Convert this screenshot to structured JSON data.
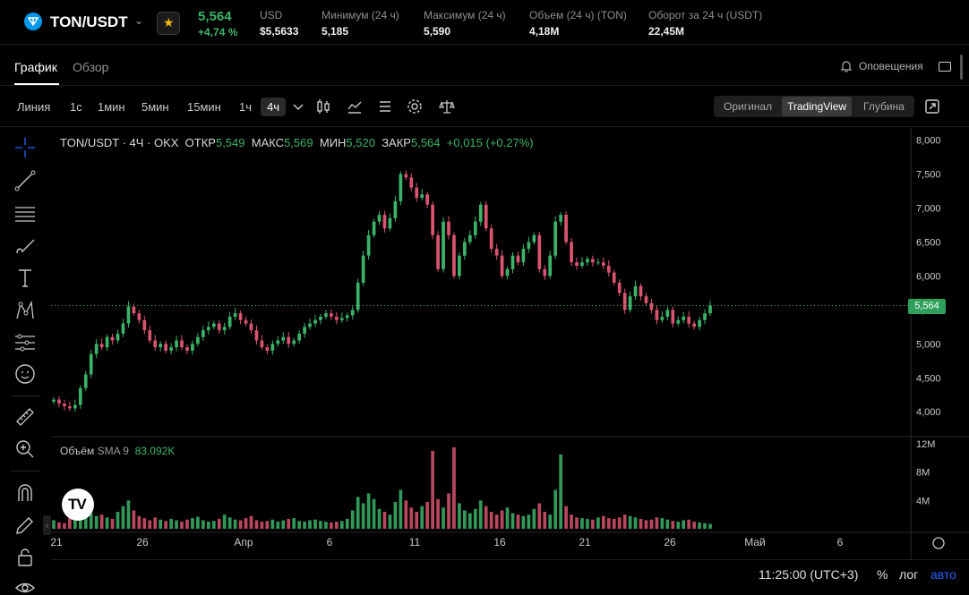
{
  "ticker": {
    "pair": "TON/USDT",
    "price": "5,564",
    "change": "+4,74 %",
    "stats": [
      {
        "label": "USD",
        "value": "$5,5633"
      },
      {
        "label": "Минимум (24 ч)",
        "value": "5,185"
      },
      {
        "label": "Максимум (24 ч)",
        "value": "5,590"
      },
      {
        "label": "Объем (24 ч) (TON)",
        "value": "4,18M"
      },
      {
        "label": "Оборот за 24 ч (USDT)",
        "value": "22,45M"
      }
    ]
  },
  "tabs": {
    "chart": "График",
    "overview": "Обзор",
    "alerts": "Оповещения"
  },
  "toolbar": {
    "timeframes": [
      "Линия",
      "1с",
      "1мин",
      "5мин",
      "15мин",
      "1ч",
      "4ч"
    ],
    "active_timeframe": "4ч",
    "views": [
      "Оригинал",
      "TradingView",
      "Глубина"
    ],
    "active_view": "TradingView"
  },
  "legend": {
    "title": "TON/USDT · 4Ч · OKX",
    "open_label": "ОТКР",
    "open": "5,549",
    "high_label": "МАКС",
    "high": "5,569",
    "low_label": "МИН",
    "low": "5,520",
    "close_label": "ЗАКР",
    "close": "5,564",
    "change": "+0,015 (+0.27%)"
  },
  "volume_legend": {
    "label": "Объём",
    "indicator": "SMA 9",
    "value": "83.092K"
  },
  "current_price_tag": "5,564",
  "bottom": {
    "time": "11:25:00 (UTC+3)",
    "percent": "%",
    "log": "лог",
    "auto": "авто"
  },
  "colors": {
    "up": "#3bb46a",
    "down": "#d9546f",
    "accent": "#2962ff",
    "background": "#000000"
  },
  "chart_data": {
    "type": "candlestick",
    "title": "TON/USDT · 4Ч · OKX",
    "y_ticks": [
      "8,000",
      "7,500",
      "7,000",
      "6,500",
      "6,000",
      "5,500",
      "5,000",
      "4,500",
      "4,000"
    ],
    "ylim": [
      3.7,
      8.1
    ],
    "x_ticks": [
      "21",
      "26",
      "Апр",
      "6",
      "11",
      "16",
      "21",
      "26",
      "Май",
      "6"
    ],
    "volume_ticks": [
      "12M",
      "8M",
      "4M"
    ],
    "volume_ylim": [
      0,
      12
    ],
    "series_close": [
      4.18,
      4.12,
      4.08,
      4.05,
      4.1,
      4.35,
      4.55,
      4.85,
      5.0,
      4.95,
      5.1,
      5.05,
      5.15,
      5.3,
      5.55,
      5.45,
      5.35,
      5.2,
      5.05,
      4.95,
      5.0,
      4.9,
      4.95,
      5.05,
      4.95,
      4.9,
      5.0,
      5.1,
      5.2,
      5.25,
      5.3,
      5.2,
      5.25,
      5.4,
      5.45,
      5.35,
      5.3,
      5.2,
      5.05,
      4.95,
      4.9,
      5.0,
      5.05,
      5.1,
      5.0,
      5.05,
      5.15,
      5.25,
      5.3,
      5.35,
      5.4,
      5.45,
      5.4,
      5.35,
      5.38,
      5.42,
      5.5,
      5.9,
      6.3,
      6.6,
      6.8,
      6.9,
      6.7,
      6.85,
      7.1,
      7.5,
      7.45,
      7.3,
      7.15,
      7.2,
      7.05,
      6.6,
      6.1,
      6.8,
      6.6,
      6.0,
      6.3,
      6.5,
      6.6,
      6.8,
      7.05,
      6.7,
      6.4,
      6.3,
      6.0,
      6.1,
      6.3,
      6.2,
      6.4,
      6.5,
      6.6,
      6.1,
      6.0,
      6.3,
      6.8,
      6.9,
      6.5,
      6.2,
      6.15,
      6.2,
      6.25,
      6.2,
      6.2,
      6.15,
      6.05,
      5.9,
      5.75,
      5.5,
      5.7,
      5.85,
      5.7,
      5.6,
      5.5,
      5.35,
      5.4,
      5.5,
      5.3,
      5.35,
      5.4,
      5.3,
      5.25,
      5.35,
      5.45,
      5.564
    ],
    "series_volume": [
      1.2,
      0.9,
      0.8,
      1.5,
      2.0,
      2.5,
      3.0,
      2.2,
      1.8,
      2.0,
      1.6,
      1.4,
      2.4,
      3.2,
      4.0,
      2.6,
      1.8,
      1.5,
      1.2,
      1.6,
      1.3,
      1.1,
      1.4,
      1.2,
      1.0,
      1.3,
      1.5,
      1.7,
      1.2,
      1.0,
      1.1,
      1.4,
      2.0,
      1.6,
      1.3,
      1.2,
      1.5,
      1.8,
      1.2,
      1.0,
      1.1,
      1.3,
      1.0,
      1.2,
      1.4,
      1.5,
      1.1,
      1.0,
      1.2,
      1.3,
      1.1,
      1.0,
      0.9,
      1.0,
      1.1,
      1.4,
      2.6,
      4.5,
      3.6,
      5.0,
      4.2,
      2.8,
      2.4,
      2.0,
      3.8,
      5.5,
      4.0,
      3.0,
      2.4,
      3.2,
      3.8,
      11.0,
      4.2,
      3.0,
      5.0,
      11.5,
      3.6,
      2.6,
      2.2,
      2.8,
      4.0,
      3.2,
      2.4,
      2.0,
      2.6,
      3.0,
      2.2,
      2.0,
      1.8,
      2.0,
      2.8,
      3.6,
      2.4,
      2.0,
      5.5,
      10.5,
      3.2,
      2.0,
      1.6,
      1.5,
      1.4,
      1.3,
      1.6,
      1.8,
      1.5,
      1.4,
      1.6,
      2.0,
      1.8,
      1.6,
      1.4,
      1.2,
      1.3,
      1.6,
      1.5,
      1.3,
      1.1,
      1.0,
      1.2,
      1.3,
      1.0,
      0.9,
      0.8,
      0.7
    ]
  }
}
